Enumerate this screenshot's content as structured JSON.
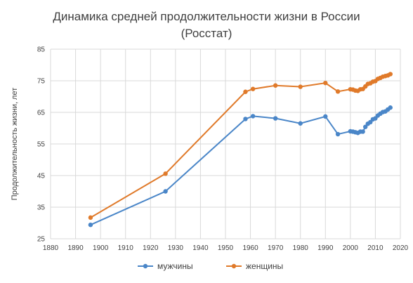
{
  "chart_data": {
    "type": "line",
    "title_line1": "Динамика средней продолжительности жизни в России",
    "title_line2": "(Росстат)",
    "xlabel": "",
    "ylabel": "Продолжительность жизни, лет",
    "xlim": [
      1880,
      2020
    ],
    "ylim": [
      25,
      85
    ],
    "x_ticks": [
      "1880",
      "1890",
      "1900",
      "1910",
      "1920",
      "1930",
      "1940",
      "1950",
      "1960",
      "1970",
      "1980",
      "1990",
      "2000",
      "2010",
      "2020"
    ],
    "y_ticks": [
      "25",
      "35",
      "45",
      "55",
      "65",
      "75",
      "85"
    ],
    "grid": true,
    "legend_position": "bottom",
    "series": [
      {
        "name": "мужчины",
        "color": "#4a86c8",
        "points": [
          [
            1896,
            29.4
          ],
          [
            1926,
            40.0
          ],
          [
            1958,
            62.9
          ],
          [
            1961,
            63.8
          ],
          [
            1970,
            63.1
          ],
          [
            1980,
            61.5
          ],
          [
            1990,
            63.7
          ],
          [
            1995,
            58.1
          ],
          [
            2000,
            59.0
          ],
          [
            2001,
            58.9
          ],
          [
            2002,
            58.7
          ],
          [
            2003,
            58.5
          ],
          [
            2004,
            58.9
          ],
          [
            2005,
            58.9
          ],
          [
            2006,
            60.4
          ],
          [
            2007,
            61.4
          ],
          [
            2008,
            61.9
          ],
          [
            2009,
            62.8
          ],
          [
            2010,
            63.1
          ],
          [
            2011,
            64.0
          ],
          [
            2012,
            64.6
          ],
          [
            2013,
            65.1
          ],
          [
            2014,
            65.3
          ],
          [
            2015,
            65.9
          ],
          [
            2016,
            66.5
          ]
        ]
      },
      {
        "name": "женщины",
        "color": "#e07a2a",
        "points": [
          [
            1896,
            31.7
          ],
          [
            1926,
            45.6
          ],
          [
            1958,
            71.5
          ],
          [
            1961,
            72.4
          ],
          [
            1970,
            73.5
          ],
          [
            1980,
            73.1
          ],
          [
            1990,
            74.3
          ],
          [
            1995,
            71.6
          ],
          [
            2000,
            72.3
          ],
          [
            2001,
            72.2
          ],
          [
            2002,
            71.9
          ],
          [
            2003,
            71.8
          ],
          [
            2004,
            72.3
          ],
          [
            2005,
            72.4
          ],
          [
            2006,
            73.2
          ],
          [
            2007,
            74.0
          ],
          [
            2008,
            74.2
          ],
          [
            2009,
            74.7
          ],
          [
            2010,
            74.9
          ],
          [
            2011,
            75.6
          ],
          [
            2012,
            75.9
          ],
          [
            2013,
            76.3
          ],
          [
            2014,
            76.5
          ],
          [
            2015,
            76.7
          ],
          [
            2016,
            77.1
          ]
        ]
      }
    ]
  }
}
